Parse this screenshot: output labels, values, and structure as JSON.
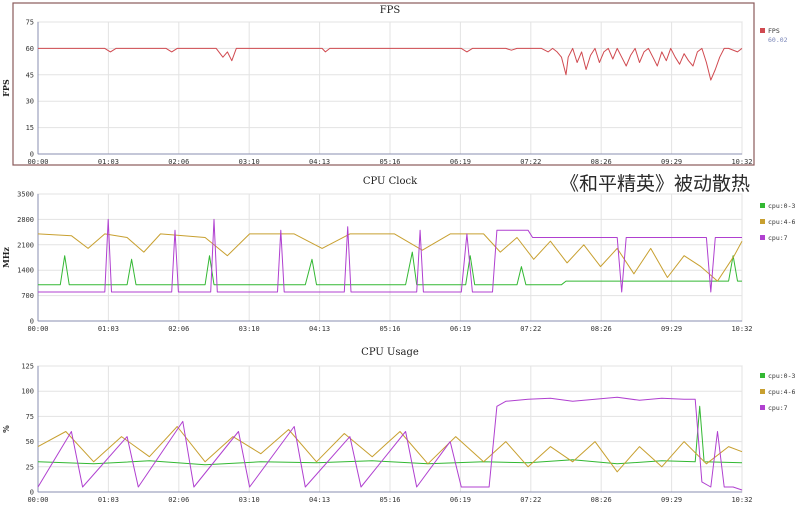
{
  "overlay_text": "《和平精英》被动散热",
  "chart_data": [
    {
      "type": "line",
      "title": "FPS",
      "ylabel": "FPS",
      "ylim": [
        0,
        75
      ],
      "yticks": [
        0,
        15,
        30,
        45,
        60,
        75
      ],
      "x_tick_labels": [
        "00:00",
        "01:03",
        "02:06",
        "03:10",
        "04:13",
        "05:16",
        "06:19",
        "07:22",
        "08:26",
        "09:29",
        "10:32"
      ],
      "x_duration_seconds": 632,
      "grid": true,
      "legend_position": "right",
      "series": [
        {
          "name": "FPS",
          "value_label": "60.02",
          "color": "#d04a50",
          "points": [
            [
              0,
              60
            ],
            [
              60,
              60
            ],
            [
              65,
              58
            ],
            [
              70,
              60
            ],
            [
              115,
              60
            ],
            [
              120,
              58
            ],
            [
              125,
              60
            ],
            [
              160,
              60
            ],
            [
              166,
              55
            ],
            [
              170,
              58
            ],
            [
              174,
              53
            ],
            [
              178,
              60
            ],
            [
              210,
              60
            ],
            [
              255,
              60
            ],
            [
              258,
              58
            ],
            [
              262,
              60
            ],
            [
              340,
              60
            ],
            [
              380,
              60
            ],
            [
              385,
              58
            ],
            [
              390,
              60
            ],
            [
              420,
              60
            ],
            [
              425,
              59
            ],
            [
              430,
              60
            ],
            [
              440,
              60
            ],
            [
              452,
              60
            ],
            [
              458,
              58
            ],
            [
              462,
              60
            ],
            [
              466,
              58
            ],
            [
              470,
              55
            ],
            [
              474,
              45
            ],
            [
              476,
              55
            ],
            [
              480,
              60
            ],
            [
              484,
              52
            ],
            [
              488,
              58
            ],
            [
              492,
              48
            ],
            [
              496,
              56
            ],
            [
              500,
              60
            ],
            [
              504,
              52
            ],
            [
              508,
              58
            ],
            [
              512,
              60
            ],
            [
              516,
              54
            ],
            [
              520,
              60
            ],
            [
              524,
              55
            ],
            [
              528,
              50
            ],
            [
              532,
              56
            ],
            [
              536,
              60
            ],
            [
              540,
              52
            ],
            [
              544,
              58
            ],
            [
              548,
              60
            ],
            [
              552,
              55
            ],
            [
              556,
              50
            ],
            [
              560,
              58
            ],
            [
              564,
              53
            ],
            [
              568,
              60
            ],
            [
              572,
              55
            ],
            [
              576,
              51
            ],
            [
              580,
              57
            ],
            [
              584,
              53
            ],
            [
              588,
              50
            ],
            [
              592,
              58
            ],
            [
              596,
              60
            ],
            [
              600,
              52
            ],
            [
              604,
              42
            ],
            [
              608,
              48
            ],
            [
              612,
              55
            ],
            [
              616,
              60
            ],
            [
              620,
              60
            ],
            [
              628,
              58
            ],
            [
              632,
              60
            ]
          ]
        }
      ]
    },
    {
      "type": "line",
      "title": "CPU Clock",
      "ylabel": "MHz",
      "ylim": [
        0,
        3500
      ],
      "yticks": [
        0,
        700,
        1400,
        2100,
        2800,
        3500
      ],
      "x_tick_labels": [
        "00:00",
        "01:03",
        "02:06",
        "03:10",
        "04:13",
        "05:16",
        "06:19",
        "07:22",
        "08:26",
        "09:29",
        "10:32"
      ],
      "x_duration_seconds": 632,
      "grid": true,
      "legend_position": "right",
      "series": [
        {
          "name": "cpu:0-3",
          "color": "#33b833",
          "points": [
            [
              0,
              1000
            ],
            [
              20,
              1000
            ],
            [
              24,
              1800
            ],
            [
              28,
              1000
            ],
            [
              80,
              1000
            ],
            [
              84,
              1700
            ],
            [
              88,
              1000
            ],
            [
              150,
              1000
            ],
            [
              154,
              1800
            ],
            [
              158,
              1000
            ],
            [
              240,
              1000
            ],
            [
              246,
              1700
            ],
            [
              250,
              1000
            ],
            [
              330,
              1000
            ],
            [
              336,
              1900
            ],
            [
              340,
              1000
            ],
            [
              384,
              1000
            ],
            [
              388,
              1800
            ],
            [
              392,
              1000
            ],
            [
              430,
              1000
            ],
            [
              434,
              1500
            ],
            [
              438,
              1000
            ],
            [
              470,
              1000
            ],
            [
              474,
              1100
            ],
            [
              620,
              1100
            ],
            [
              624,
              1800
            ],
            [
              628,
              1100
            ],
            [
              632,
              1100
            ]
          ]
        },
        {
          "name": "cpu:4-6",
          "color": "#c8a030",
          "points": [
            [
              0,
              2400
            ],
            [
              30,
              2350
            ],
            [
              45,
              2000
            ],
            [
              60,
              2400
            ],
            [
              80,
              2300
            ],
            [
              95,
              1900
            ],
            [
              110,
              2400
            ],
            [
              150,
              2300
            ],
            [
              170,
              1800
            ],
            [
              190,
              2400
            ],
            [
              230,
              2400
            ],
            [
              255,
              2000
            ],
            [
              280,
              2400
            ],
            [
              320,
              2400
            ],
            [
              345,
              1950
            ],
            [
              370,
              2400
            ],
            [
              400,
              2400
            ],
            [
              415,
              1900
            ],
            [
              430,
              2300
            ],
            [
              445,
              1700
            ],
            [
              460,
              2200
            ],
            [
              475,
              1600
            ],
            [
              490,
              2100
            ],
            [
              505,
              1500
            ],
            [
              520,
              2000
            ],
            [
              535,
              1300
            ],
            [
              550,
              2000
            ],
            [
              565,
              1200
            ],
            [
              580,
              1800
            ],
            [
              595,
              1500
            ],
            [
              610,
              1100
            ],
            [
              625,
              1800
            ],
            [
              632,
              2200
            ]
          ]
        },
        {
          "name": "cpu:7",
          "color": "#b040d0",
          "points": [
            [
              0,
              800
            ],
            [
              60,
              800
            ],
            [
              63,
              2800
            ],
            [
              66,
              800
            ],
            [
              120,
              800
            ],
            [
              123,
              2500
            ],
            [
              126,
              800
            ],
            [
              155,
              800
            ],
            [
              158,
              2800
            ],
            [
              161,
              800
            ],
            [
              215,
              800
            ],
            [
              218,
              2500
            ],
            [
              221,
              800
            ],
            [
              275,
              800
            ],
            [
              278,
              2600
            ],
            [
              281,
              800
            ],
            [
              340,
              800
            ],
            [
              343,
              2500
            ],
            [
              346,
              800
            ],
            [
              380,
              800
            ],
            [
              385,
              2400
            ],
            [
              390,
              800
            ],
            [
              408,
              800
            ],
            [
              412,
              2500
            ],
            [
              440,
              2500
            ],
            [
              444,
              2300
            ],
            [
              520,
              2300
            ],
            [
              524,
              800
            ],
            [
              528,
              2300
            ],
            [
              600,
              2300
            ],
            [
              604,
              800
            ],
            [
              608,
              2300
            ],
            [
              632,
              2300
            ]
          ]
        }
      ]
    },
    {
      "type": "line",
      "title": "CPU Usage",
      "ylabel": "%",
      "ylim": [
        0,
        125
      ],
      "yticks": [
        0,
        25,
        50,
        75,
        100,
        125
      ],
      "x_tick_labels": [
        "00:00",
        "01:03",
        "02:06",
        "03:10",
        "04:13",
        "05:16",
        "06:19",
        "07:22",
        "08:26",
        "09:29",
        "10:32"
      ],
      "x_duration_seconds": 632,
      "grid": true,
      "legend_position": "right",
      "series": [
        {
          "name": "cpu:0-3",
          "color": "#33b833",
          "points": [
            [
              0,
              30
            ],
            [
              50,
              28
            ],
            [
              100,
              31
            ],
            [
              150,
              27
            ],
            [
              200,
              30
            ],
            [
              250,
              29
            ],
            [
              300,
              31
            ],
            [
              350,
              28
            ],
            [
              400,
              30
            ],
            [
              440,
              29
            ],
            [
              480,
              32
            ],
            [
              520,
              28
            ],
            [
              560,
              31
            ],
            [
              590,
              30
            ],
            [
              594,
              85
            ],
            [
              598,
              30
            ],
            [
              632,
              29
            ]
          ]
        },
        {
          "name": "cpu:4-6",
          "color": "#c8a030",
          "points": [
            [
              0,
              45
            ],
            [
              25,
              60
            ],
            [
              50,
              30
            ],
            [
              75,
              55
            ],
            [
              100,
              35
            ],
            [
              125,
              65
            ],
            [
              150,
              30
            ],
            [
              175,
              55
            ],
            [
              200,
              38
            ],
            [
              225,
              62
            ],
            [
              250,
              30
            ],
            [
              275,
              58
            ],
            [
              300,
              35
            ],
            [
              325,
              60
            ],
            [
              350,
              28
            ],
            [
              375,
              55
            ],
            [
              400,
              30
            ],
            [
              420,
              50
            ],
            [
              440,
              25
            ],
            [
              460,
              45
            ],
            [
              480,
              30
            ],
            [
              500,
              50
            ],
            [
              520,
              20
            ],
            [
              540,
              45
            ],
            [
              560,
              25
            ],
            [
              580,
              50
            ],
            [
              600,
              28
            ],
            [
              620,
              45
            ],
            [
              632,
              40
            ]
          ]
        },
        {
          "name": "cpu:7",
          "color": "#b040d0",
          "points": [
            [
              0,
              5
            ],
            [
              30,
              60
            ],
            [
              40,
              5
            ],
            [
              80,
              55
            ],
            [
              90,
              5
            ],
            [
              130,
              70
            ],
            [
              140,
              5
            ],
            [
              180,
              60
            ],
            [
              190,
              5
            ],
            [
              230,
              65
            ],
            [
              240,
              5
            ],
            [
              280,
              55
            ],
            [
              290,
              5
            ],
            [
              330,
              60
            ],
            [
              340,
              5
            ],
            [
              370,
              50
            ],
            [
              380,
              5
            ],
            [
              405,
              5
            ],
            [
              412,
              85
            ],
            [
              420,
              90
            ],
            [
              440,
              92
            ],
            [
              460,
              93
            ],
            [
              480,
              90
            ],
            [
              500,
              92
            ],
            [
              520,
              94
            ],
            [
              540,
              91
            ],
            [
              560,
              93
            ],
            [
              580,
              92
            ],
            [
              590,
              92
            ],
            [
              596,
              10
            ],
            [
              604,
              5
            ],
            [
              610,
              60
            ],
            [
              616,
              5
            ],
            [
              624,
              5
            ],
            [
              632,
              2
            ]
          ]
        }
      ]
    }
  ]
}
